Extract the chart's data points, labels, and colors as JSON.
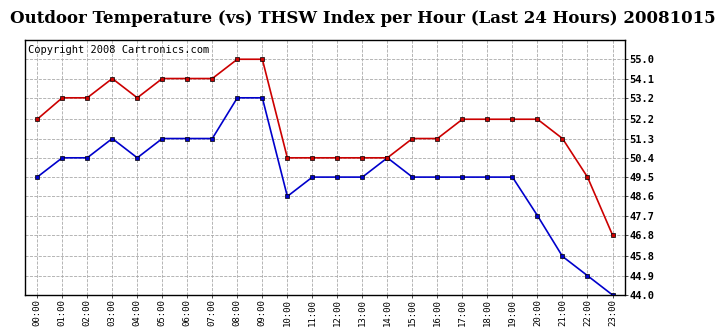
{
  "title": "Outdoor Temperature (vs) THSW Index per Hour (Last 24 Hours) 20081015",
  "copyright_text": "Copyright 2008 Cartronics.com",
  "hours": [
    "00:00",
    "01:00",
    "02:00",
    "03:00",
    "04:00",
    "05:00",
    "06:00",
    "07:00",
    "08:00",
    "09:00",
    "10:00",
    "11:00",
    "12:00",
    "13:00",
    "14:00",
    "15:00",
    "16:00",
    "17:00",
    "18:00",
    "19:00",
    "20:00",
    "21:00",
    "22:00",
    "23:00"
  ],
  "temp_blue": [
    49.5,
    50.4,
    50.4,
    51.3,
    50.4,
    51.3,
    51.3,
    51.3,
    53.2,
    53.2,
    48.6,
    49.5,
    49.5,
    49.5,
    50.4,
    49.5,
    49.5,
    49.5,
    49.5,
    49.5,
    47.7,
    45.8,
    44.9,
    44.0
  ],
  "thsw_red": [
    52.2,
    53.2,
    53.2,
    54.1,
    53.2,
    54.1,
    54.1,
    54.1,
    55.0,
    55.0,
    50.4,
    50.4,
    50.4,
    50.4,
    50.4,
    51.3,
    51.3,
    52.2,
    52.2,
    52.2,
    52.2,
    51.3,
    49.5,
    46.8
  ],
  "blue_color": "#0000cc",
  "red_color": "#cc0000",
  "markersize": 3,
  "ylim_min": 44.0,
  "ylim_max": 55.9,
  "yticks": [
    44.0,
    44.9,
    45.8,
    46.8,
    47.7,
    48.6,
    49.5,
    50.4,
    51.3,
    52.2,
    53.2,
    54.1,
    55.0
  ],
  "bg_color": "#ffffff",
  "plot_bg_color": "#ffffff",
  "grid_color": "#aaaaaa",
  "title_fontsize": 12,
  "copyright_fontsize": 7.5
}
